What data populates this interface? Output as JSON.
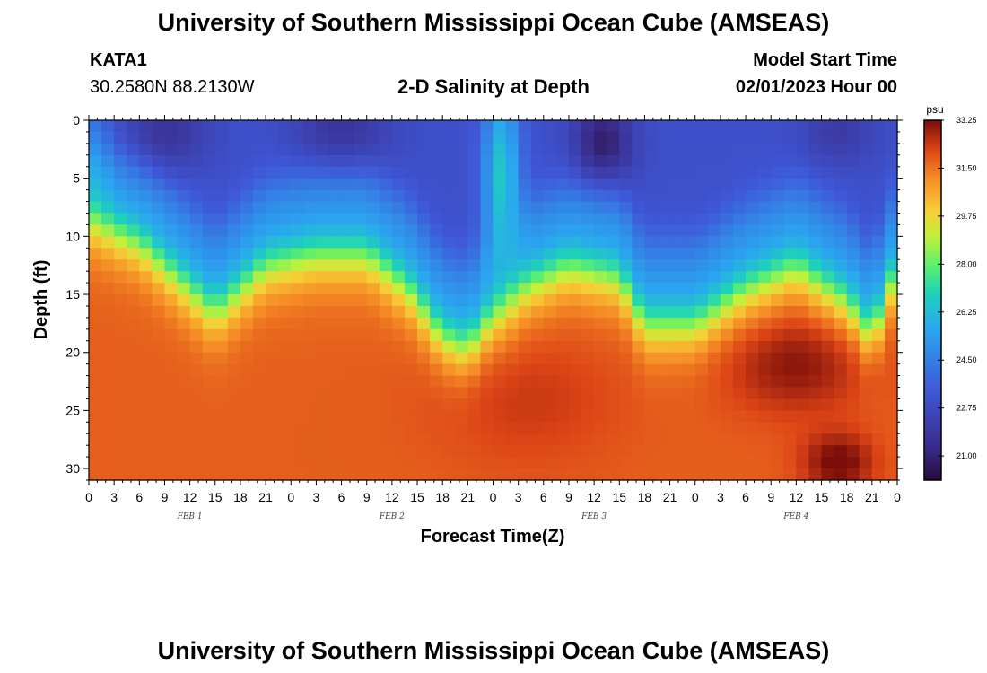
{
  "header": {
    "title": "University of Southern Mississippi Ocean Cube (AMSEAS)",
    "station": "KATA1",
    "coords": "30.2580N  88.2130W",
    "subtitle": "2-D Salinity at Depth",
    "model_label": "Model Start Time",
    "model_date": "02/01/2023 Hour 00"
  },
  "footer": {
    "title": "University of Southern Mississippi Ocean Cube (AMSEAS)"
  },
  "chart_data": {
    "type": "heatmap",
    "title": "2-D Salinity at Depth",
    "xlabel": "Forecast Time(Z)",
    "ylabel": "Depth (ft)",
    "x_tick_labels": [
      "0",
      "3",
      "6",
      "9",
      "12",
      "15",
      "18",
      "21",
      "0",
      "3",
      "6",
      "9",
      "12",
      "15",
      "18",
      "21",
      "0",
      "3",
      "6",
      "9",
      "12",
      "15",
      "18",
      "21",
      "0",
      "3",
      "6",
      "9",
      "12",
      "15",
      "18",
      "21",
      "0"
    ],
    "x_range_hours": [
      0,
      96
    ],
    "day_labels": [
      {
        "label": "FEB 1",
        "hour": 12
      },
      {
        "label": "FEB 2",
        "hour": 36
      },
      {
        "label": "FEB 3",
        "hour": 60
      },
      {
        "label": "FEB 4",
        "hour": 84
      }
    ],
    "y_ticks": [
      0,
      5,
      10,
      15,
      20,
      25,
      30
    ],
    "y_range_ft": [
      0,
      31
    ],
    "colorbar": {
      "unit": "psu",
      "min": 20.12,
      "max": 33.25,
      "tick_values": [
        33.25,
        31.5,
        29.75,
        28.0,
        26.25,
        24.5,
        22.75,
        21.0
      ],
      "tick_labels": [
        "33.25",
        "31.50",
        "29.75",
        "28.00",
        "26.25",
        "24.50",
        "22.75",
        "21.00"
      ]
    },
    "halocline_depth_profile": {
      "hours": [
        0,
        6,
        9,
        15,
        21,
        27,
        33,
        38,
        42,
        45,
        48,
        51,
        57,
        63,
        66,
        72,
        78,
        84,
        90,
        93,
        96
      ],
      "depth_ft": [
        8,
        10,
        12,
        16,
        12,
        11,
        11,
        14,
        18,
        19,
        16,
        14,
        12,
        13,
        17,
        17,
        14,
        12,
        15,
        18,
        12
      ]
    },
    "surface_salinity_psu": 23.0,
    "bottom_salinity_psu": 31.8,
    "max_salinity_region": {
      "hour": 89,
      "depth_ft": 29.5,
      "psu": 33.25
    },
    "freshwater_plume": {
      "hour": 49,
      "psu": 27.0
    }
  }
}
